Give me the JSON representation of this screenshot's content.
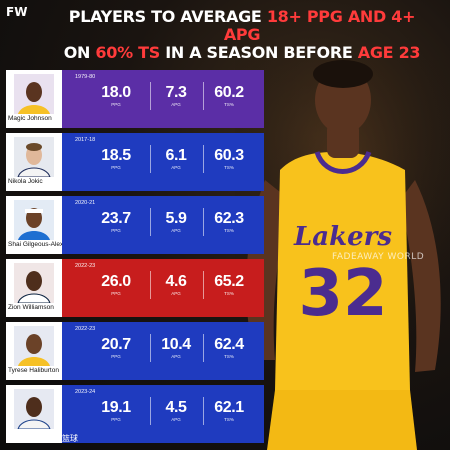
{
  "brand": {
    "logo": "FW",
    "watermark": "FADEAWAY WORLD",
    "footer": "搜狐号@大脸很篮球"
  },
  "title": {
    "part1": "PLAYERS TO AVERAGE ",
    "part1_hl": "18+ PPG AND 4+ APG",
    "part2": "ON ",
    "part2_hl": "60% TS",
    "part3": " IN A SEASON BEFORE ",
    "part3_hl": "AGE 23"
  },
  "units": {
    "ppg": "PPG",
    "apg": "APG",
    "ts": "TS%"
  },
  "colors": {
    "purple": "#5b2ea6",
    "blue": "#1f3bbf",
    "red": "#c71d1d",
    "highlight": "#ff3b3b"
  },
  "players": [
    {
      "name": "Magic Johnson",
      "season": "1979-80",
      "ppg": "18.0",
      "apg": "7.3",
      "ts": "60.2",
      "color": "#5b2ea6"
    },
    {
      "name": "Nikola Jokic",
      "season": "2017-18",
      "ppg": "18.5",
      "apg": "6.1",
      "ts": "60.3",
      "color": "#1f3bbf"
    },
    {
      "name": "Shai Gilgeous-Alexander",
      "season": "2020-21",
      "ppg": "23.7",
      "apg": "5.9",
      "ts": "62.3",
      "color": "#1f3bbf"
    },
    {
      "name": "Zion Williamson",
      "season": "2022-23",
      "ppg": "26.0",
      "apg": "4.6",
      "ts": "65.2",
      "color": "#c71d1d"
    },
    {
      "name": "Tyrese Haliburton",
      "season": "2022-23",
      "ppg": "20.7",
      "apg": "10.4",
      "ts": "62.4",
      "color": "#1f3bbf"
    },
    {
      "name": "",
      "season": "2023-24",
      "ppg": "19.1",
      "apg": "4.5",
      "ts": "62.1",
      "color": "#1f3bbf"
    }
  ]
}
